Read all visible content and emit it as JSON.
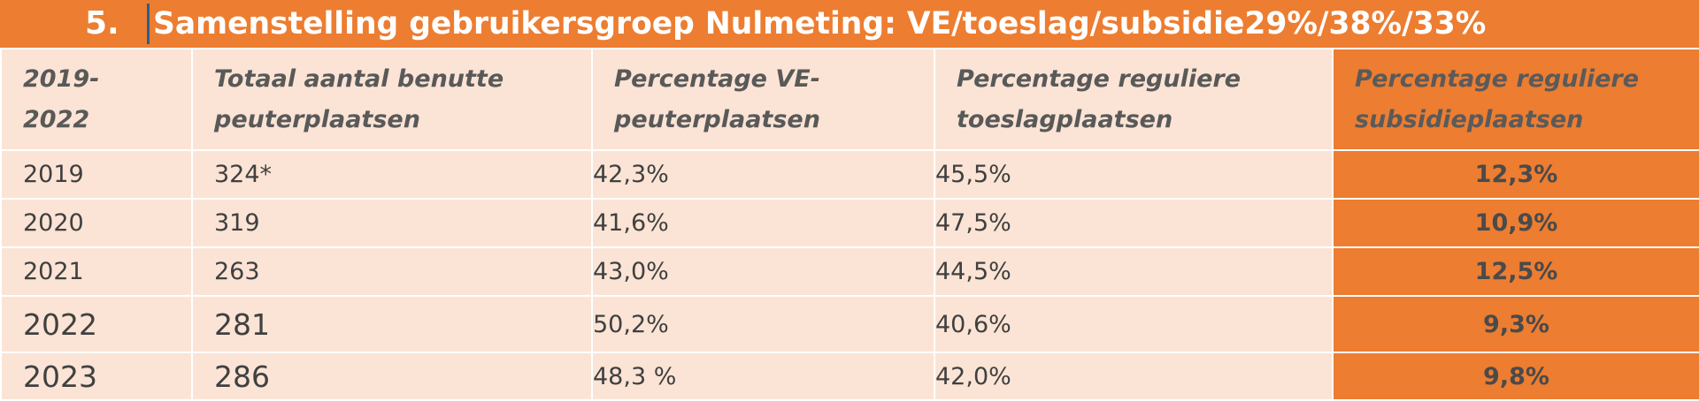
{
  "title": {
    "number": "5.",
    "text": "Samenstelling gebruikersgroep Nulmeting: VE/toeslag/subsidie29%/38%/33%"
  },
  "colors": {
    "accent": "#ED7D31",
    "cell_background": "#FBE4D5"
  },
  "table": {
    "headers": [
      [
        "2019-",
        "2022"
      ],
      [
        "Totaal aantal benutte",
        "peuterplaatsen"
      ],
      [
        "Percentage  VE-",
        "peuterplaatsen"
      ],
      [
        "Percentage reguliere",
        "toeslagplaatsen"
      ],
      [
        "Percentage reguliere",
        "subsidieplaatsen"
      ]
    ],
    "rows": [
      [
        "2019",
        "324*",
        "42,3%",
        "45,5%",
        "12,3%"
      ],
      [
        "2020",
        "319",
        "41,6%",
        "47,5%",
        "10,9%"
      ],
      [
        "2021",
        "263",
        "43,0%",
        "44,5%",
        "12,5%"
      ],
      [
        "2022",
        "281",
        "50,2%",
        "40,6%",
        "9,3%"
      ],
      [
        "2023",
        "286",
        "48,3 %",
        "42,0%",
        "9,8%"
      ]
    ]
  }
}
